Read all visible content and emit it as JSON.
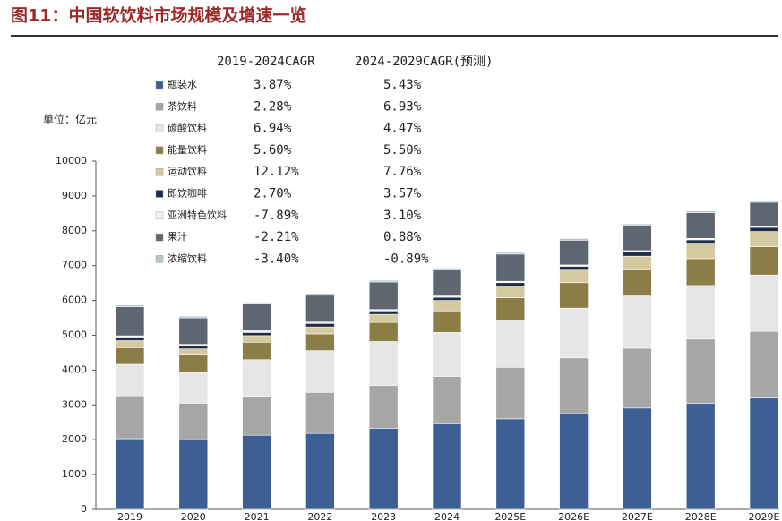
{
  "chart_data": {
    "type": "stacked_bar",
    "title": "图11：中国软饮料市场规模及增速一览",
    "y_label": "单位：亿元",
    "categories": [
      "2019",
      "2020",
      "2021",
      "2022",
      "2023",
      "2024",
      "2025E",
      "2026E",
      "2027E",
      "2028E",
      "2029E"
    ],
    "series": [
      {
        "name": "瓶装水",
        "color": "#3e5f94",
        "values": [
          2030,
          2000,
          2130,
          2180,
          2330,
          2460,
          2600,
          2750,
          2910,
          3050,
          3200
        ]
      },
      {
        "name": "茶饮料",
        "color": "#a6a6a6",
        "values": [
          1230,
          1050,
          1120,
          1180,
          1230,
          1360,
          1480,
          1600,
          1720,
          1840,
          1910
        ]
      },
      {
        "name": "碳酸饮料",
        "color": "#e6e6e6",
        "values": [
          905,
          880,
          1050,
          1200,
          1260,
          1260,
          1350,
          1430,
          1500,
          1540,
          1620
        ]
      },
      {
        "name": "能量饮料",
        "color": "#8a7d45",
        "values": [
          480,
          500,
          500,
          480,
          550,
          620,
          650,
          730,
          750,
          770,
          810
        ]
      },
      {
        "name": "运动饮料",
        "color": "#d4c99f",
        "values": [
          200,
          180,
          190,
          200,
          230,
          300,
          330,
          360,
          390,
          420,
          440
        ]
      },
      {
        "name": "即饮咖啡",
        "color": "#1f2c4a",
        "values": [
          80,
          80,
          90,
          100,
          100,
          90,
          100,
          110,
          120,
          120,
          120
        ]
      },
      {
        "name": "亚洲特色饮料",
        "color": "#f2f2f2",
        "values": [
          60,
          50,
          50,
          40,
          40,
          40,
          40,
          40,
          40,
          40,
          40
        ]
      },
      {
        "name": "果汁",
        "color": "#5d6671",
        "values": [
          835,
          760,
          770,
          770,
          790,
          750,
          780,
          710,
          720,
          740,
          680
        ]
      },
      {
        "name": "浓缩饮料",
        "color": "#b9c5cd",
        "values": [
          50,
          50,
          50,
          50,
          50,
          50,
          50,
          50,
          50,
          50,
          50
        ]
      }
    ],
    "cagr_headers": [
      "2019-2024CAGR",
      "2024-2029CAGR(预测)"
    ],
    "cagr": [
      [
        "3.87%",
        "5.43%"
      ],
      [
        "2.28%",
        "6.93%"
      ],
      [
        "6.94%",
        "4.47%"
      ],
      [
        "5.60%",
        "5.50%"
      ],
      [
        "12.12%",
        "7.76%"
      ],
      [
        "2.70%",
        "3.57%"
      ],
      [
        "-7.89%",
        "3.10%"
      ],
      [
        "-2.21%",
        "0.88%"
      ],
      [
        "-3.40%",
        "-0.89%"
      ]
    ],
    "ylim": [
      0,
      10000
    ],
    "yticks": [
      0,
      1000,
      2000,
      3000,
      4000,
      5000,
      6000,
      7000,
      8000,
      9000,
      10000
    ],
    "grid": false
  }
}
